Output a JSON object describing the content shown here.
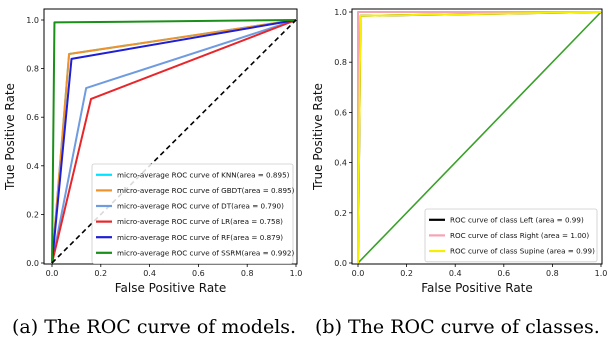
{
  "chart_data": [
    {
      "type": "line",
      "xlabel": "False Positive Rate",
      "ylabel": "True Positive Rate",
      "xlim": [
        0,
        1
      ],
      "ylim": [
        0,
        1
      ],
      "xticks": [
        "0.0",
        "0.2",
        "0.4",
        "0.6",
        "0.8",
        "1.0"
      ],
      "yticks": [
        "0.0",
        "0.2",
        "0.4",
        "0.6",
        "0.8",
        "1.0"
      ],
      "grid": false,
      "legend_position": "lower-right",
      "series": [
        {
          "name": "micro-average ROC curve of KNN(area = 0.895)",
          "color": "#00e5ff",
          "x": [
            0,
            0.07,
            1
          ],
          "y": [
            0,
            0.86,
            1
          ]
        },
        {
          "name": "micro-average ROC curve of GBDT(area = 0.895)",
          "color": "#f0922c",
          "x": [
            0,
            0.07,
            1
          ],
          "y": [
            0,
            0.86,
            1
          ]
        },
        {
          "name": "micro-average ROC curve of DT(area = 0.790)",
          "color": "#6f9be0",
          "x": [
            0,
            0.14,
            1
          ],
          "y": [
            0,
            0.72,
            1
          ]
        },
        {
          "name": "micro-average ROC curve of LR(area = 0.758)",
          "color": "#e8262a",
          "x": [
            0,
            0.16,
            1
          ],
          "y": [
            0,
            0.675,
            1
          ]
        },
        {
          "name": "micro-average ROC curve of RF(area = 0.879)",
          "color": "#1f1fd6",
          "x": [
            0,
            0.08,
            1
          ],
          "y": [
            0,
            0.84,
            1
          ]
        },
        {
          "name": "micro-average ROC curve of SSRM(area = 0.992)",
          "color": "#1a8f1a",
          "x": [
            0,
            0.01,
            1
          ],
          "y": [
            0,
            0.99,
            1
          ]
        }
      ],
      "reference_line": {
        "x": [
          0,
          1
        ],
        "y": [
          0,
          1
        ],
        "style": "dashed",
        "color": "#000000"
      }
    },
    {
      "type": "line",
      "xlabel": "False Positive Rate",
      "ylabel": "True Positive Rate",
      "xlim": [
        0,
        1
      ],
      "ylim": [
        0,
        1
      ],
      "xticks": [
        "0.0",
        "0.2",
        "0.4",
        "0.6",
        "0.8",
        "1.0"
      ],
      "yticks": [
        "0.0",
        "0.2",
        "0.4",
        "0.6",
        "0.8",
        "1.0"
      ],
      "grid": false,
      "legend_position": "lower-right",
      "series": [
        {
          "name": "ROC curve of class Left (area = 0.99)",
          "color": "#000000",
          "x": [
            0,
            0.01,
            1
          ],
          "y": [
            0,
            0.985,
            1
          ]
        },
        {
          "name": "ROC curve of class Right (area = 1.00)",
          "color": "#f4a3b4",
          "x": [
            0,
            0,
            1
          ],
          "y": [
            0,
            1,
            1
          ]
        },
        {
          "name": "ROC curve of class Supine (area = 0.99)",
          "color": "#f5f000",
          "x": [
            0,
            0.01,
            1
          ],
          "y": [
            0,
            0.985,
            1
          ]
        }
      ],
      "reference_line": {
        "x": [
          0,
          1
        ],
        "y": [
          0,
          1
        ],
        "style": "solid",
        "color": "#3aa02a"
      }
    }
  ],
  "captions": [
    "(a) The ROC curve of models.",
    "(b) The ROC curve of classes."
  ]
}
